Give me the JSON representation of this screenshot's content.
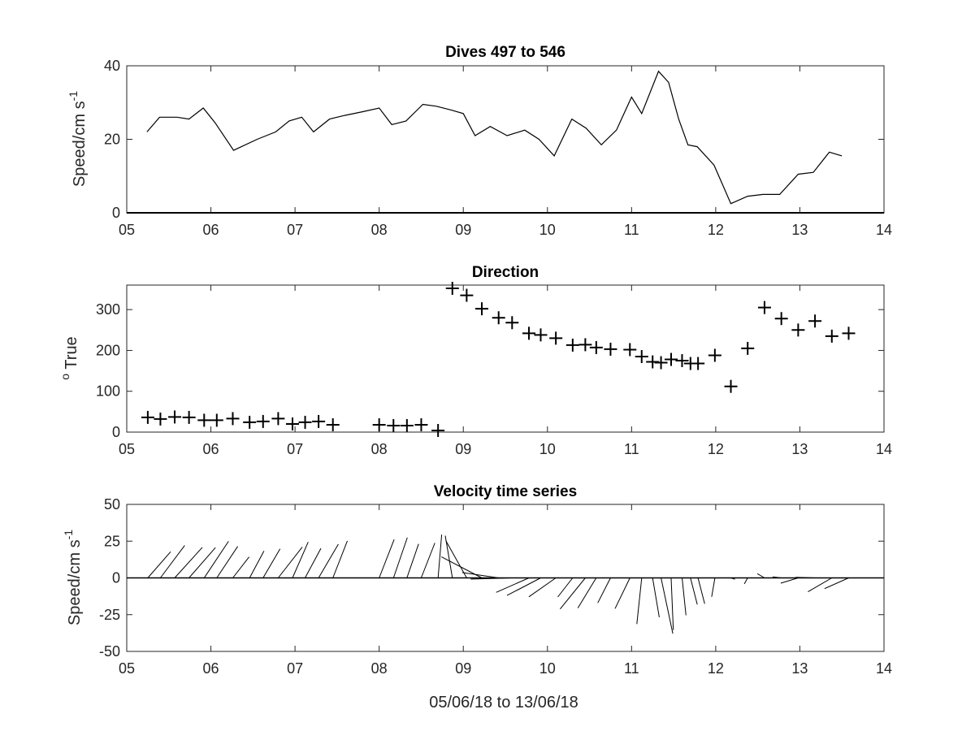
{
  "chart_data": [
    {
      "type": "line",
      "title": "Dives 497 to 546",
      "ylabel_main": "Speed/cm s",
      "ylabel_sup": "-1",
      "xlim": [
        5,
        14
      ],
      "ylim": [
        0,
        40
      ],
      "xticks": [
        5,
        6,
        7,
        8,
        9,
        10,
        11,
        12,
        13,
        14
      ],
      "xticklabels": [
        "05",
        "06",
        "07",
        "08",
        "09",
        "10",
        "11",
        "12",
        "13",
        "14"
      ],
      "yticks": [
        0,
        20,
        40
      ],
      "yticklabels": [
        "0",
        "20",
        "40"
      ],
      "grid": false,
      "series": [
        {
          "x": [
            5.24,
            5.39,
            5.6,
            5.74,
            5.91,
            6.05,
            6.27,
            6.55,
            6.77,
            6.93,
            7.08,
            7.22,
            7.41,
            7.59,
            7.8,
            8.0,
            8.15,
            8.32,
            8.52,
            8.68,
            8.85,
            9.0,
            9.14,
            9.32,
            9.52,
            9.73,
            9.9,
            10.08,
            10.29,
            10.46,
            10.64,
            10.82,
            11.0,
            11.12,
            11.32,
            11.44,
            11.56,
            11.67,
            11.78,
            11.98,
            12.18,
            12.38,
            12.56,
            12.76,
            12.98,
            13.16,
            13.35,
            13.5
          ],
          "y": [
            22,
            26,
            26,
            25.5,
            28.5,
            24.5,
            17,
            20,
            22,
            25,
            26,
            22,
            25.5,
            26.5,
            27.5,
            28.5,
            24,
            25,
            29.5,
            29,
            28,
            27,
            21,
            23.5,
            21,
            22.5,
            20,
            15.5,
            25.5,
            23,
            18.5,
            22.5,
            31.5,
            27,
            38.5,
            35.5,
            25.5,
            18.5,
            18,
            13,
            2.5,
            4.5,
            5,
            5,
            10.5,
            11,
            16.5,
            15.5
          ]
        }
      ]
    },
    {
      "type": "scatter",
      "title": "Direction",
      "ylabel_sup": "o",
      "ylabel_main": " True",
      "xlim": [
        5,
        14
      ],
      "ylim": [
        0,
        360
      ],
      "xticks": [
        5,
        6,
        7,
        8,
        9,
        10,
        11,
        12,
        13,
        14
      ],
      "xticklabels": [
        "05",
        "06",
        "07",
        "08",
        "09",
        "10",
        "11",
        "12",
        "13",
        "14"
      ],
      "yticks": [
        0,
        100,
        200,
        300
      ],
      "yticklabels": [
        "0",
        "100",
        "200",
        "300"
      ],
      "grid": false,
      "marker": "+",
      "series": [
        {
          "x": [
            5.25,
            5.4,
            5.57,
            5.74,
            5.92,
            6.07,
            6.26,
            6.46,
            6.62,
            6.8,
            6.97,
            7.12,
            7.28,
            7.45,
            8.0,
            8.17,
            8.33,
            8.5,
            8.7,
            8.87,
            9.04,
            9.22,
            9.42,
            9.58,
            9.78,
            9.92,
            10.1,
            10.3,
            10.45,
            10.58,
            10.75,
            10.98,
            11.12,
            11.25,
            11.35,
            11.47,
            11.6,
            11.7,
            11.79,
            11.99,
            12.18,
            12.38,
            12.58,
            12.78,
            12.98,
            13.18,
            13.38,
            13.58
          ],
          "y": [
            36,
            32,
            37,
            36,
            29,
            29,
            33,
            24,
            26,
            33,
            20,
            24,
            26,
            18,
            18,
            16,
            16,
            18,
            4,
            352,
            335,
            302,
            280,
            268,
            242,
            238,
            230,
            213,
            214,
            207,
            203,
            202,
            185,
            172,
            170,
            178,
            175,
            168,
            168,
            188,
            112,
            205,
            305,
            278,
            250,
            272,
            235,
            242
          ]
        }
      ]
    },
    {
      "type": "quiver",
      "title": "Velocity time series",
      "xlabel": "05/06/18 to 13/06/18",
      "ylabel_main": "Speed/cm s",
      "ylabel_sup": "-1",
      "xlim": [
        5,
        14
      ],
      "ylim": [
        -50,
        50
      ],
      "xticks": [
        5,
        6,
        7,
        8,
        9,
        10,
        11,
        12,
        13,
        14
      ],
      "xticklabels": [
        "05",
        "06",
        "07",
        "08",
        "09",
        "10",
        "11",
        "12",
        "13",
        "14"
      ],
      "yticks": [
        -50,
        -25,
        0,
        25,
        50
      ],
      "yticklabels": [
        "-50",
        "-25",
        "0",
        "25",
        "50"
      ],
      "grid": false,
      "series": [
        {
          "x": [
            5.25,
            5.4,
            5.57,
            5.74,
            5.92,
            6.07,
            6.26,
            6.46,
            6.62,
            6.8,
            6.97,
            7.12,
            7.28,
            7.45,
            8.0,
            8.17,
            8.33,
            8.5,
            8.7,
            8.87,
            9.04,
            9.22,
            9.42,
            9.58,
            9.78,
            9.92,
            10.1,
            10.3,
            10.45,
            10.58,
            10.75,
            10.98,
            11.12,
            11.25,
            11.35,
            11.47,
            11.6,
            11.7,
            11.79,
            11.99,
            12.18,
            12.38,
            12.58,
            12.78,
            12.98,
            13.18,
            13.38,
            13.58
          ],
          "speed": [
            22,
            26,
            26,
            25.5,
            28.5,
            24.5,
            17,
            20,
            22,
            25,
            26,
            22,
            25.5,
            26.5,
            27.5,
            28.5,
            24,
            25,
            29.5,
            29,
            28,
            27,
            21,
            23.5,
            21,
            22.5,
            20,
            15.5,
            25.5,
            23,
            18.5,
            22.5,
            31.5,
            27,
            38.5,
            35.5,
            25.5,
            18.5,
            18,
            13,
            2.5,
            4.5,
            5,
            5,
            10.5,
            11,
            16.5,
            15.5
          ],
          "direction": [
            36,
            32,
            37,
            36,
            29,
            29,
            33,
            24,
            26,
            33,
            20,
            24,
            26,
            18,
            18,
            16,
            16,
            18,
            4,
            352,
            335,
            302,
            280,
            268,
            242,
            238,
            230,
            213,
            214,
            207,
            203,
            202,
            185,
            172,
            170,
            178,
            175,
            168,
            168,
            188,
            112,
            205,
            305,
            278,
            250,
            272,
            235,
            242
          ]
        }
      ]
    }
  ]
}
